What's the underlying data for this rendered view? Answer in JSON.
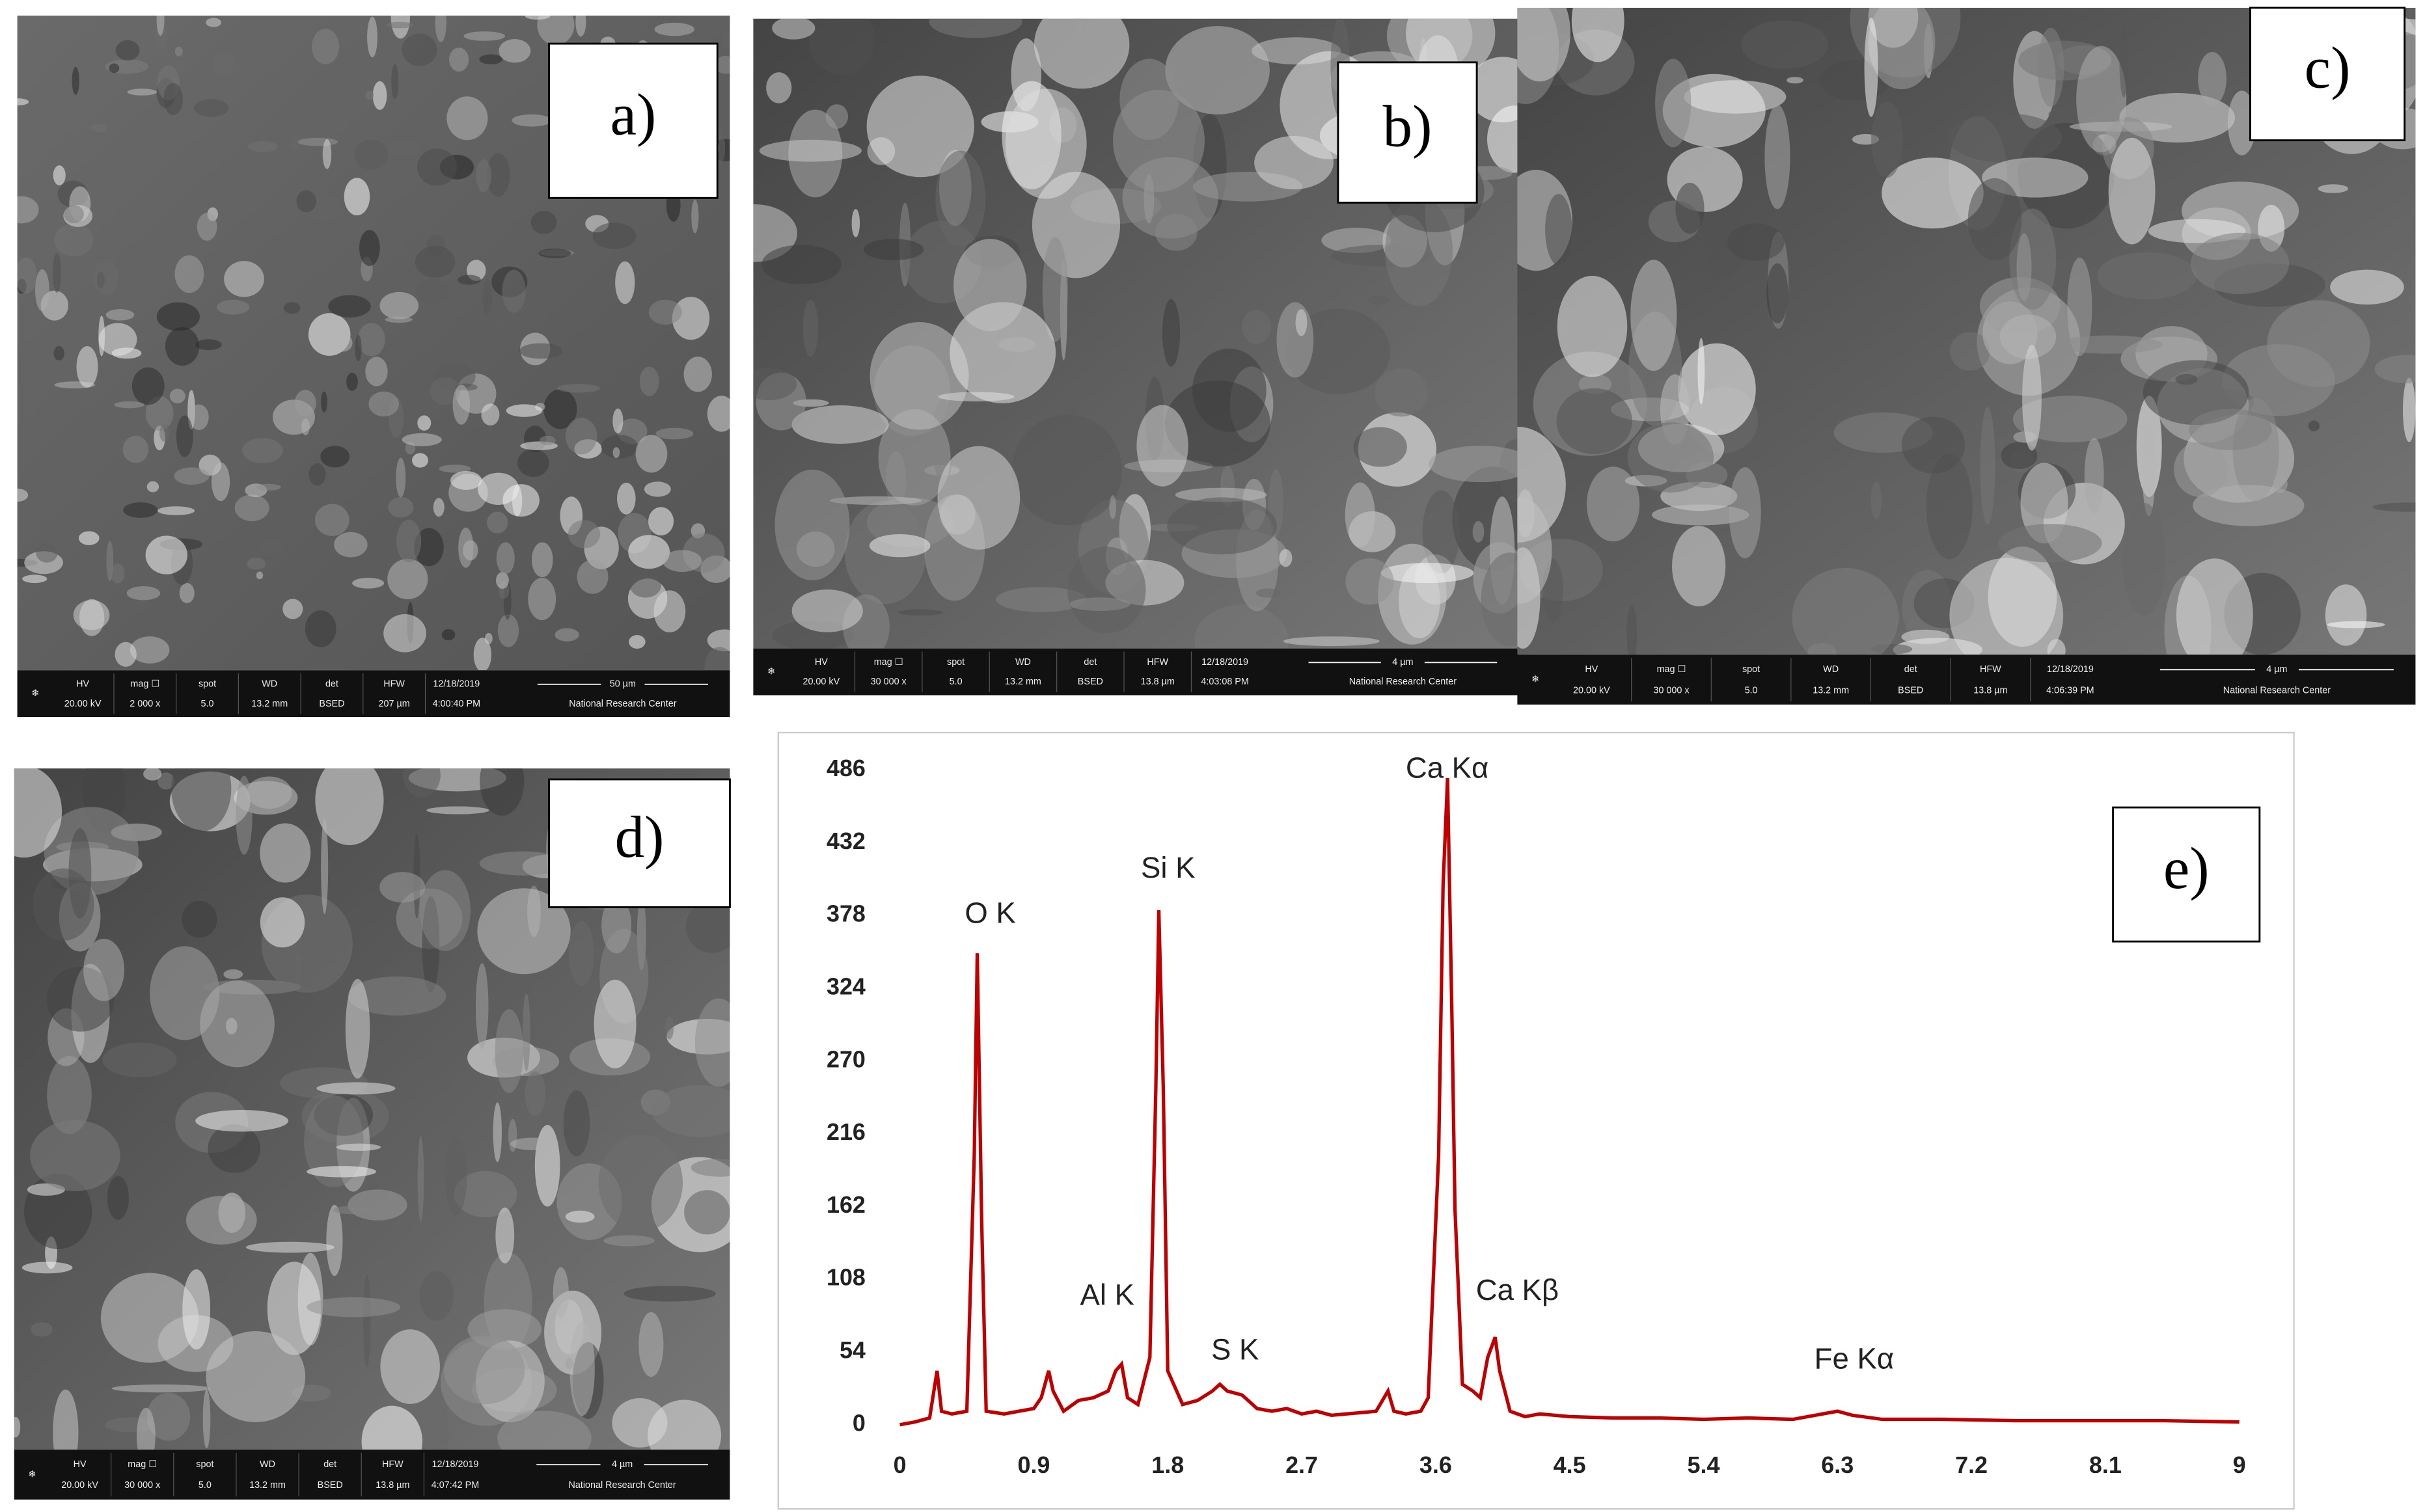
{
  "panels": [
    {
      "label": "a)",
      "info_headers": [
        "HV",
        "mag ☐",
        "spot",
        "WD",
        "det",
        "HFW",
        "12/18/2019"
      ],
      "info_values": [
        "20.00 kV",
        "2 000 x",
        "5.0",
        "13.2 mm",
        "BSED",
        "207 µm",
        "4:00:40 PM"
      ],
      "scale_bar": "50 µm",
      "center": "National Research Center"
    },
    {
      "label": "b)",
      "info_headers": [
        "HV",
        "mag ☐",
        "spot",
        "WD",
        "det",
        "HFW",
        "12/18/2019"
      ],
      "info_values": [
        "20.00 kV",
        "30 000 x",
        "5.0",
        "13.2 mm",
        "BSED",
        "13.8 µm",
        "4:03:08 PM"
      ],
      "scale_bar": "4 µm",
      "center": "National Research Center"
    },
    {
      "label": "c)",
      "info_headers": [
        "HV",
        "mag ☐",
        "spot",
        "WD",
        "det",
        "HFW",
        "12/18/2019"
      ],
      "info_values": [
        "20.00 kV",
        "30 000 x",
        "5.0",
        "13.2 mm",
        "BSED",
        "13.8 µm",
        "4:06:39 PM"
      ],
      "scale_bar": "4 µm",
      "center": "National Research Center"
    },
    {
      "label": "d)",
      "info_headers": [
        "HV",
        "mag ☐",
        "spot",
        "WD",
        "det",
        "HFW",
        "12/18/2019"
      ],
      "info_values": [
        "20.00 kV",
        "30 000 x",
        "5.0",
        "13.2 mm",
        "BSED",
        "13.8 µm",
        "4:07:42 PM"
      ],
      "scale_bar": "4 µm",
      "center": "National Research Center"
    }
  ],
  "chart_data": {
    "type": "line",
    "label": "e)",
    "color": "#c00000",
    "x": [
      0,
      0.1,
      0.2,
      0.25,
      0.28,
      0.35,
      0.45,
      0.5,
      0.52,
      0.55,
      0.58,
      0.7,
      0.8,
      0.9,
      0.95,
      1.0,
      1.03,
      1.1,
      1.2,
      1.3,
      1.4,
      1.45,
      1.49,
      1.53,
      1.6,
      1.68,
      1.72,
      1.74,
      1.77,
      1.8,
      1.9,
      2.0,
      2.1,
      2.15,
      2.2,
      2.3,
      2.4,
      2.5,
      2.6,
      2.7,
      2.8,
      2.9,
      3.0,
      3.1,
      3.2,
      3.28,
      3.32,
      3.4,
      3.5,
      3.55,
      3.62,
      3.65,
      3.68,
      3.71,
      3.73,
      3.78,
      3.85,
      3.9,
      3.95,
      4.0,
      4.03,
      4.1,
      4.2,
      4.3,
      4.5,
      4.8,
      5.1,
      5.4,
      5.7,
      6.0,
      6.2,
      6.3,
      6.4,
      6.6,
      7.0,
      7.5,
      8.0,
      8.5,
      9.0
    ],
    "values": [
      0,
      2,
      5,
      40,
      10,
      8,
      10,
      200,
      350,
      150,
      10,
      8,
      10,
      12,
      20,
      40,
      25,
      10,
      18,
      20,
      25,
      40,
      45,
      20,
      15,
      50,
      250,
      382,
      250,
      40,
      15,
      18,
      25,
      30,
      25,
      22,
      12,
      10,
      12,
      8,
      10,
      7,
      8,
      9,
      10,
      25,
      10,
      8,
      10,
      20,
      200,
      400,
      480,
      300,
      160,
      30,
      25,
      20,
      50,
      65,
      40,
      10,
      6,
      8,
      6,
      5,
      5,
      4,
      5,
      4,
      8,
      10,
      7,
      4,
      4,
      3,
      3,
      3,
      2
    ],
    "xlim": [
      0,
      9
    ],
    "ylim": [
      0,
      486
    ],
    "xticks": [
      0,
      0.9,
      1.8,
      2.7,
      3.6,
      4.5,
      5.4,
      6.3,
      7.2,
      8.1,
      9
    ],
    "yticks": [
      0,
      54,
      108,
      162,
      216,
      270,
      324,
      378,
      432,
      486
    ],
    "annotations": [
      "O K",
      "Si K",
      "Al K",
      "S K",
      "Ca Kα",
      "Ca Kβ",
      "Fe Kα"
    ]
  }
}
